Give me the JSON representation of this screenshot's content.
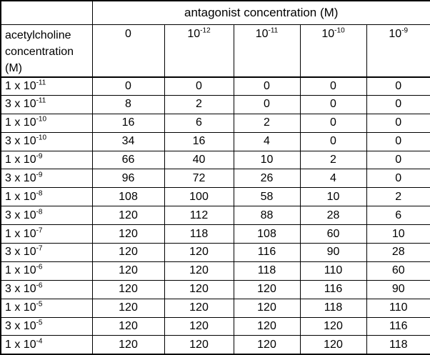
{
  "chart_data": {
    "type": "table",
    "spanning_header": "antagonist concentration (M)",
    "row_header": "acetylcholine concentration (M)",
    "col_headers": [
      {
        "base": "0",
        "exp": ""
      },
      {
        "base": "10",
        "exp": "-12"
      },
      {
        "base": "10",
        "exp": "-11"
      },
      {
        "base": "10",
        "exp": "-10"
      },
      {
        "base": "10",
        "exp": "-9"
      }
    ],
    "rows": [
      {
        "label_base": "1 x 10",
        "label_exp": "-11",
        "values": [
          0,
          0,
          0,
          0,
          0
        ]
      },
      {
        "label_base": "3 x 10",
        "label_exp": "-11",
        "values": [
          8,
          2,
          0,
          0,
          0
        ]
      },
      {
        "label_base": "1 x 10",
        "label_exp": "-10",
        "values": [
          16,
          6,
          2,
          0,
          0
        ]
      },
      {
        "label_base": "3 x 10",
        "label_exp": "-10",
        "values": [
          34,
          16,
          4,
          0,
          0
        ]
      },
      {
        "label_base": "1 x 10",
        "label_exp": "-9",
        "values": [
          66,
          40,
          10,
          2,
          0
        ]
      },
      {
        "label_base": "3 x 10",
        "label_exp": "-9",
        "values": [
          96,
          72,
          26,
          4,
          0
        ]
      },
      {
        "label_base": "1 x 10",
        "label_exp": "-8",
        "values": [
          108,
          100,
          58,
          10,
          2
        ]
      },
      {
        "label_base": "3 x 10",
        "label_exp": "-8",
        "values": [
          120,
          112,
          88,
          28,
          6
        ]
      },
      {
        "label_base": "1 x 10",
        "label_exp": "-7",
        "values": [
          120,
          118,
          108,
          60,
          10
        ]
      },
      {
        "label_base": "3 x 10",
        "label_exp": "-7",
        "values": [
          120,
          120,
          116,
          90,
          28
        ]
      },
      {
        "label_base": "1 x 10",
        "label_exp": "-6",
        "values": [
          120,
          120,
          118,
          110,
          60
        ]
      },
      {
        "label_base": "3 x 10",
        "label_exp": "-6",
        "values": [
          120,
          120,
          120,
          116,
          90
        ]
      },
      {
        "label_base": "1 x 10",
        "label_exp": "-5",
        "values": [
          120,
          120,
          120,
          118,
          110
        ]
      },
      {
        "label_base": "3 x 10",
        "label_exp": "-5",
        "values": [
          120,
          120,
          120,
          120,
          116
        ]
      },
      {
        "label_base": "1 x 10",
        "label_exp": "-4",
        "values": [
          120,
          120,
          120,
          120,
          118
        ]
      }
    ],
    "colors": {
      "border": "#000000",
      "text": "#000000",
      "background": "#ffffff"
    }
  }
}
